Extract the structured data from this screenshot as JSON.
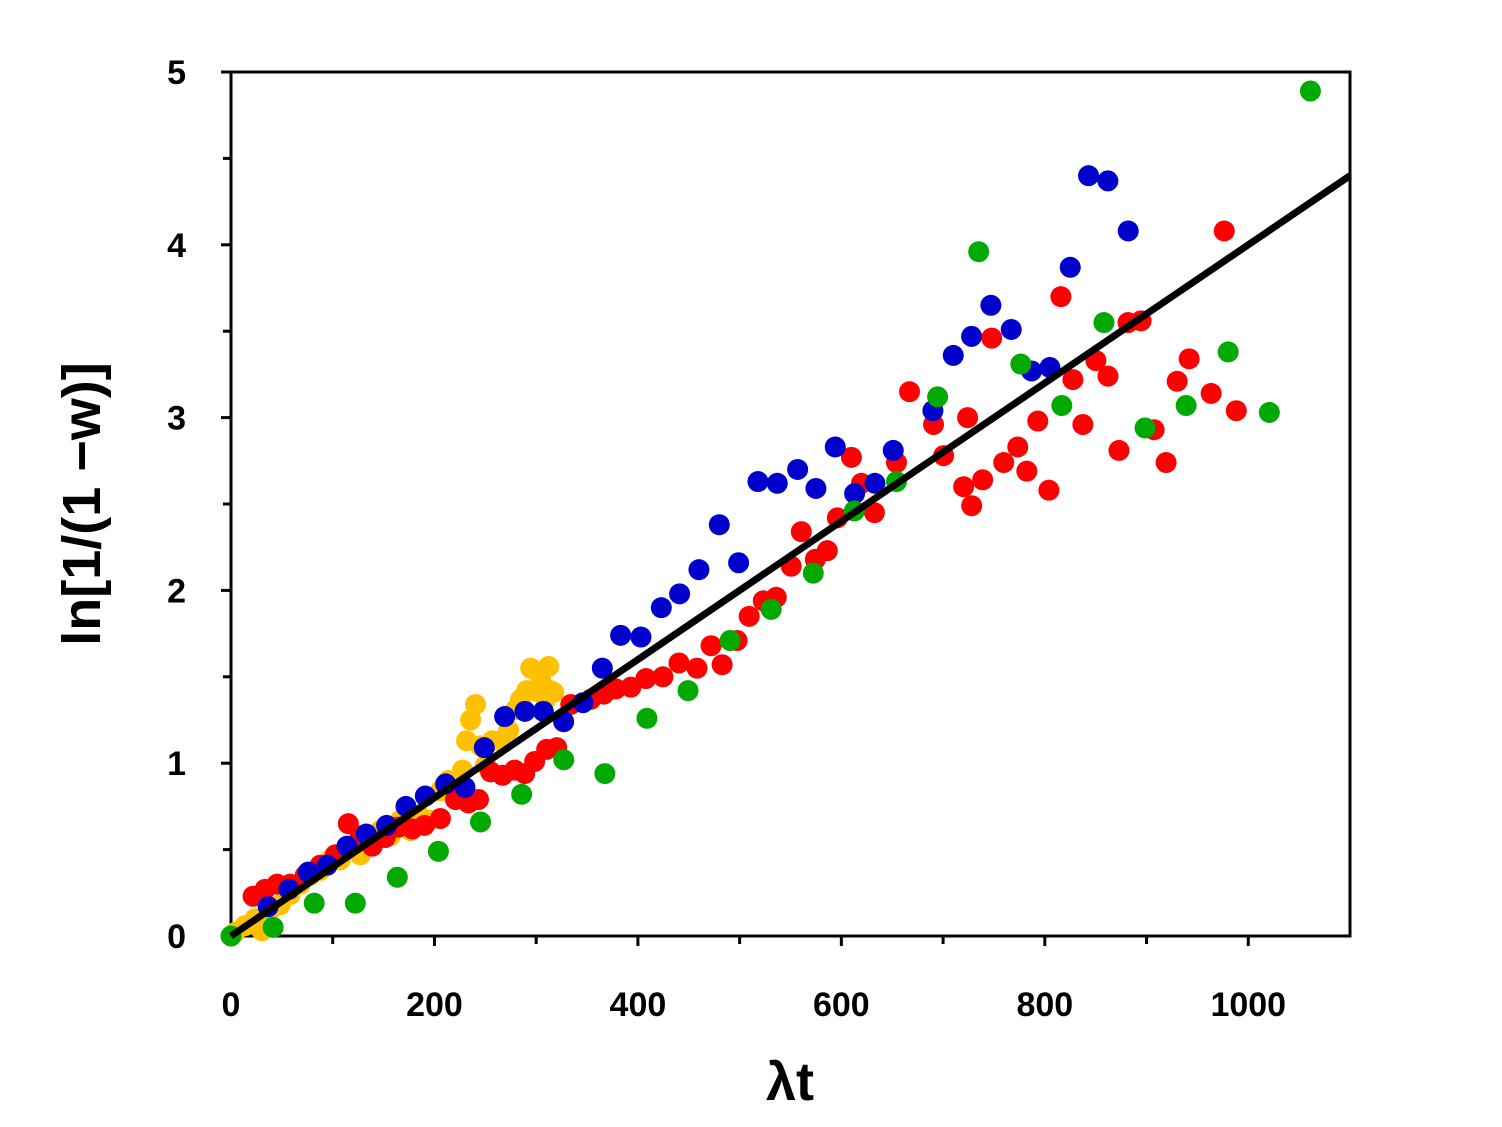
{
  "chart_data": {
    "type": "scatter",
    "xlabel": "λt",
    "ylabel": "ln[1/(1 −w)]",
    "xlim": [
      0,
      1100
    ],
    "ylim": [
      0,
      5
    ],
    "xticks": [
      0,
      200,
      400,
      600,
      800,
      1000
    ],
    "xminorticks": [
      100,
      300,
      500,
      700,
      900
    ],
    "yticks": [
      0,
      1,
      2,
      3,
      4,
      5
    ],
    "yminorticks": [
      0.5,
      1.5,
      2.5,
      3.5,
      4.5
    ],
    "series": [
      {
        "color": "#ffc000",
        "x": [
          3.9,
          13.8,
          23.6,
          30.5,
          38.4,
          48.3,
          58.1,
          68,
          77.8,
          87.7,
          97.5,
          107.4,
          117.2,
          127.1,
          136.9,
          146.8,
          156.7,
          166.5,
          176.4,
          186.2,
          196.1,
          205.9,
          213.8,
          220.7,
          227.6,
          231.5,
          235.5,
          240.4,
          245.3,
          250.2,
          257.1,
          265,
          272.9,
          279.8,
          284.7,
          290.6,
          294.6,
          299.5,
          304.4,
          312.3,
          314.3,
          317.2,
          309.4
        ],
        "values": [
          0.02,
          0.06,
          0.1,
          0.03,
          0.15,
          0.18,
          0.24,
          0.3,
          0.35,
          0.38,
          0.44,
          0.44,
          0.52,
          0.47,
          0.52,
          0.61,
          0.58,
          0.67,
          0.61,
          0.69,
          0.67,
          0.84,
          0.9,
          0.79,
          0.96,
          1.13,
          1.25,
          1.34,
          1.1,
          0.99,
          1.13,
          1.13,
          1.19,
          1.31,
          1.37,
          1.42,
          1.55,
          1.42,
          1.48,
          1.56,
          1.42,
          1.41,
          1.37
        ]
      },
      {
        "color": "#ff0000",
        "x": [
          21.7,
          33.5,
          45.3,
          58.1,
          72.9,
          87.7,
          102.5,
          115.3,
          127.1,
          138.9,
          151.7,
          164.5,
          178.3,
          190.1,
          205.9,
          220.7,
          233.5,
          243.3,
          255.2,
          267,
          278.8,
          288.7,
          298.5,
          310.3,
          320.2,
          334,
          353.7,
          366.5,
          378.3,
          393.1,
          407.9,
          424.6,
          440.4,
          458.1,
          471.9,
          482.8,
          497.5,
          509.4,
          523.2,
          536,
          550.7,
          560.6,
          574.4,
          586.2,
          596.1,
          609.9,
          619.7,
          632.5,
          654.2,
          667,
          690.6,
          700.5,
          724.1,
          720.2,
          728.1,
          738.9,
          747.8,
          759.6,
          773.4,
          782.3,
          793.1,
          804,
          815.8,
          827.6,
          837.4,
          850.2,
          862.1,
          872.9,
          881.8,
          894.6,
          907.4,
          919.2,
          930.1,
          941.9,
          963.5,
          976.4,
          988.2
        ],
        "values": [
          0.23,
          0.27,
          0.3,
          0.3,
          0.35,
          0.41,
          0.47,
          0.65,
          0.58,
          0.52,
          0.57,
          0.63,
          0.62,
          0.64,
          0.68,
          0.79,
          0.77,
          0.79,
          0.95,
          0.93,
          0.96,
          0.94,
          1.01,
          1.08,
          1.09,
          1.34,
          1.37,
          1.4,
          1.43,
          1.44,
          1.49,
          1.5,
          1.58,
          1.55,
          1.68,
          1.57,
          1.71,
          1.85,
          1.94,
          1.96,
          2.14,
          2.34,
          2.18,
          2.23,
          2.42,
          2.77,
          2.62,
          2.45,
          2.74,
          3.15,
          2.96,
          2.78,
          3.0,
          2.6,
          2.49,
          2.64,
          3.46,
          2.74,
          2.83,
          2.69,
          2.98,
          2.58,
          3.7,
          3.22,
          2.96,
          3.33,
          3.24,
          2.81,
          3.55,
          3.56,
          2.93,
          2.74,
          3.21,
          3.34,
          3.14,
          4.08,
          3.04
        ]
      },
      {
        "color": "#0000cc",
        "x": [
          36.5,
          57,
          76,
          94.6,
          114,
          133,
          153,
          172,
          191,
          211,
          230,
          249,
          269,
          289,
          307,
          327,
          346,
          365,
          383,
          403,
          423,
          441,
          460,
          480,
          499,
          518,
          537,
          557,
          575,
          594,
          613,
          633,
          651,
          690,
          710,
          728,
          747,
          767,
          787,
          805,
          825,
          843,
          862,
          882
        ],
        "values": [
          0.17,
          0.27,
          0.37,
          0.41,
          0.52,
          0.59,
          0.64,
          0.75,
          0.81,
          0.88,
          0.86,
          1.09,
          1.27,
          1.3,
          1.3,
          1.24,
          1.35,
          1.55,
          1.74,
          1.73,
          1.9,
          1.98,
          2.12,
          2.38,
          2.16,
          2.63,
          2.62,
          2.7,
          2.59,
          2.83,
          2.56,
          2.62,
          2.81,
          3.04,
          3.36,
          3.47,
          3.65,
          3.51,
          3.27,
          3.29,
          3.87,
          4.4,
          4.37,
          4.08
        ]
      },
      {
        "color": "#00aa00",
        "x": [
          0,
          41.4,
          81.8,
          122.2,
          163.5,
          203.9,
          245.3,
          285.7,
          327.1,
          367.5,
          408.9,
          449.3,
          490.6,
          531,
          572.4,
          612.8,
          654.2,
          694.6,
          735,
          776.4,
          816.7,
          858.1,
          898.5,
          938.9,
          980.3,
          1020.7,
          1061.1
        ],
        "values": [
          0,
          0.05,
          0.19,
          0.19,
          0.34,
          0.49,
          0.66,
          0.82,
          1.02,
          0.94,
          1.26,
          1.42,
          1.71,
          1.89,
          2.1,
          2.46,
          2.63,
          3.12,
          3.96,
          3.31,
          3.07,
          3.55,
          2.94,
          3.07,
          3.38,
          3.03,
          4.89
        ]
      }
    ],
    "fit": {
      "color": "#000000",
      "x": [
        0,
        1100
      ],
      "values": [
        0,
        4.4
      ]
    }
  }
}
